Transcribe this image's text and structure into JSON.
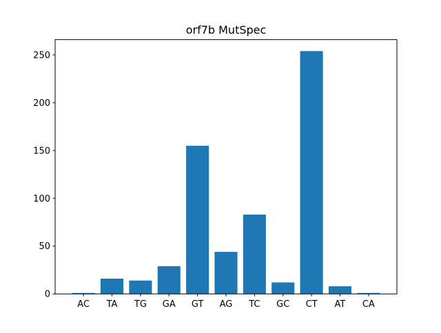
{
  "chart_data": {
    "type": "bar",
    "title": "orf7b MutSpec",
    "xlabel": "",
    "ylabel": "",
    "categories": [
      "AC",
      "TA",
      "TG",
      "GA",
      "GT",
      "AG",
      "TC",
      "GC",
      "CT",
      "AT",
      "CA"
    ],
    "values": [
      1,
      16,
      14,
      29,
      155,
      44,
      83,
      12,
      254,
      8,
      1
    ],
    "ylim": [
      0,
      266
    ],
    "yticks": [
      0,
      50,
      100,
      150,
      200,
      250
    ],
    "grid": false,
    "legend": "none",
    "bar_color": "#1f77b4"
  }
}
